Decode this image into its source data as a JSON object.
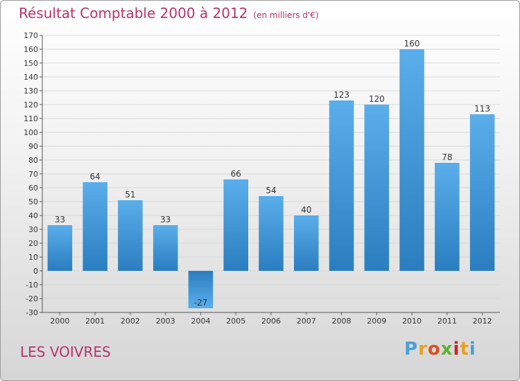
{
  "header": {
    "title": "Résultat Comptable 2000 à 2012",
    "subtitle": "(en milliers d'€)"
  },
  "footer": {
    "place": "LES VOIVRES",
    "logo": [
      "P",
      "r",
      "o",
      "x",
      "i",
      "t",
      "i"
    ]
  },
  "colors": {
    "title": "#b8326a",
    "bar_light": "#5aaeea",
    "bar_dark": "#2a7ec0",
    "logo": [
      "#4aa0d8",
      "#e8a020",
      "#e05020",
      "#60b030",
      "#d02020",
      "#e8a020",
      "#4aa0d8"
    ]
  },
  "chart_data": {
    "type": "bar",
    "title": "Résultat Comptable 2000 à 2012",
    "subtitle": "(en milliers d'€)",
    "xlabel": "",
    "ylabel": "",
    "categories": [
      "2000",
      "2001",
      "2002",
      "2003",
      "2004",
      "2005",
      "2006",
      "2007",
      "2008",
      "2009",
      "2010",
      "2011",
      "2012"
    ],
    "values": [
      33,
      64,
      51,
      33,
      -27,
      66,
      54,
      40,
      123,
      120,
      160,
      78,
      113
    ],
    "ylim": [
      -30,
      170
    ],
    "ytick_step": 10,
    "grid": true,
    "legend": "none"
  }
}
